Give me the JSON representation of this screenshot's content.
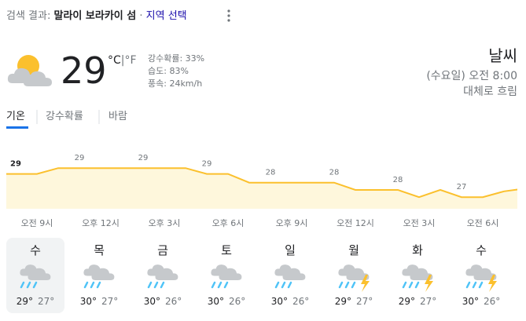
{
  "header": {
    "search_label": "검색 결과:",
    "location": "말라이 보라카이 섬",
    "separator": "·",
    "change_location": "지역 선택"
  },
  "current": {
    "temperature": "29",
    "unit_c": "°C",
    "unit_sep": "|",
    "unit_f": "°F",
    "precipitation": "강수확률: 33%",
    "humidity": "습도: 83%",
    "wind": "풍속: 24km/h",
    "title": "날씨",
    "time": "(수요일) 오전 8:00",
    "condition": "대체로 흐림"
  },
  "tabs": [
    "기온",
    "강수확률",
    "바람"
  ],
  "chart_data": {
    "type": "line",
    "categories": [
      "오전 9시",
      null,
      null,
      "오후 12시",
      null,
      null,
      "오후 3시",
      null,
      null,
      "오후 6시",
      null,
      null,
      "오후 9시",
      null,
      null,
      "오전 12시",
      null,
      null,
      "오전 3시",
      null,
      null,
      "오전 6시",
      null,
      null,
      null
    ],
    "values": [
      28.6,
      28.6,
      29,
      29,
      29,
      29,
      29,
      29,
      29,
      28.6,
      28.6,
      28,
      28,
      28,
      28,
      28,
      27.5,
      27.5,
      27.5,
      27,
      27.5,
      27,
      27,
      27.4,
      27.6
    ],
    "value_labels": [
      "29",
      null,
      null,
      "29",
      null,
      null,
      "29",
      null,
      null,
      "29",
      null,
      null,
      "28",
      null,
      null,
      "28",
      null,
      null,
      "28",
      null,
      null,
      "27",
      null,
      null,
      null
    ],
    "color": "#fbc02d",
    "fill": "#fef7dc",
    "ylim": [
      26.2,
      29.8
    ]
  },
  "days": [
    {
      "name": "수",
      "high": "29°",
      "low": "27°"
    },
    {
      "name": "목",
      "high": "30°",
      "low": "27°"
    },
    {
      "name": "금",
      "high": "30°",
      "low": "26°"
    },
    {
      "name": "토",
      "high": "30°",
      "low": "26°"
    },
    {
      "name": "일",
      "high": "30°",
      "low": "26°"
    },
    {
      "name": "월",
      "high": "29°",
      "low": "27°"
    },
    {
      "name": "화",
      "high": "29°",
      "low": "27°"
    },
    {
      "name": "수",
      "high": "30°",
      "low": "26°"
    }
  ]
}
